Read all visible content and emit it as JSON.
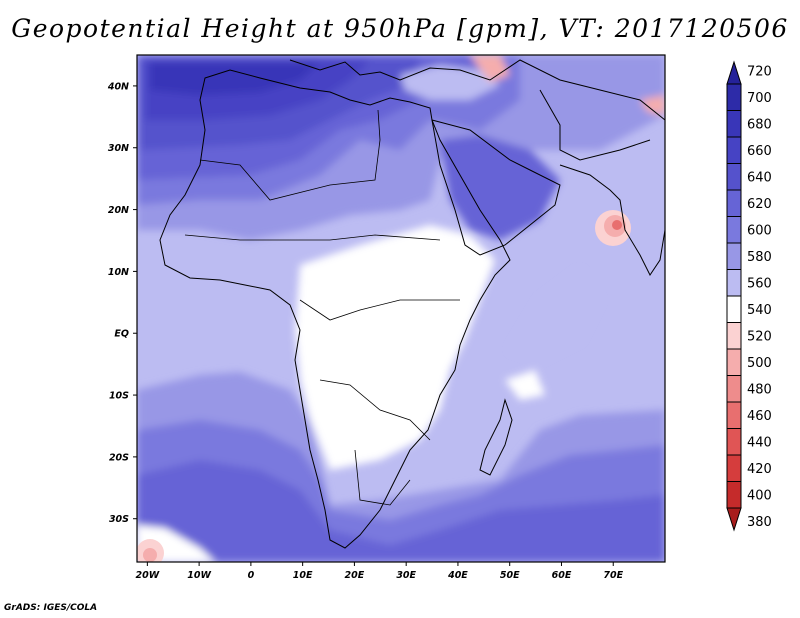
{
  "title": "Geopotential Height at 950hPa [gpm], VT: 2017120506",
  "credit": "GrADS: IGES/COLA",
  "map": {
    "x_ticks": [
      "20W",
      "10W",
      "0",
      "10E",
      "20E",
      "30E",
      "40E",
      "50E",
      "60E",
      "70E"
    ],
    "y_ticks": [
      "40N",
      "30N",
      "20N",
      "10N",
      "EQ",
      "10S",
      "20S",
      "30S"
    ],
    "lon_range": [
      -22,
      80
    ],
    "lat_range": [
      -37,
      45
    ]
  },
  "colorbar": {
    "labels": [
      "720",
      "700",
      "680",
      "660",
      "640",
      "620",
      "600",
      "580",
      "560",
      "540",
      "520",
      "500",
      "480",
      "460",
      "440",
      "420",
      "400",
      "380"
    ],
    "colors": [
      "#25229a",
      "#2d2ba8",
      "#3936b8",
      "#4643c4",
      "#5552cc",
      "#6664d6",
      "#7a79de",
      "#9897e6",
      "#bcbcf2",
      "#ffffff",
      "#fbd2d2",
      "#f5adad",
      "#ee8c8c",
      "#e86f6f",
      "#e05555",
      "#d53d3d",
      "#c52b2b",
      "#a81d1d"
    ]
  }
}
